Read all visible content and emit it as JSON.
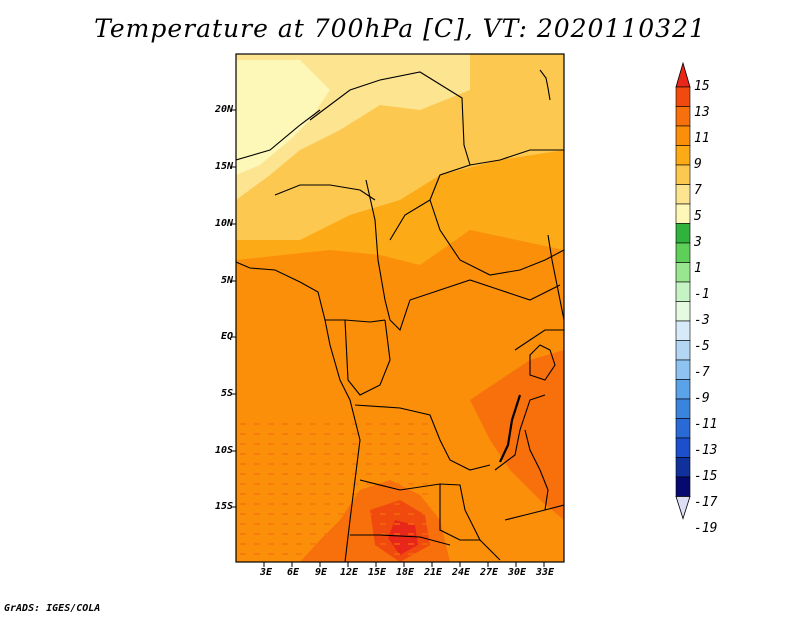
{
  "title": "Temperature at 700hPa [C], VT: 2020110321",
  "credit": "GrADS: IGES/COLA",
  "chart_data": {
    "type": "heatmap",
    "title": "Temperature at 700hPa [C], VT: 2020110321",
    "units": "C",
    "valid_time": "2020110321",
    "lon_range": [
      0,
      35
    ],
    "lat_range": [
      -20,
      25
    ],
    "y_ticks": [
      "20N",
      "15N",
      "10N",
      "5N",
      "EQ",
      "5S",
      "10S",
      "15S"
    ],
    "x_ticks": [
      "3E",
      "6E",
      "9E",
      "12E",
      "15E",
      "18E",
      "21E",
      "24E",
      "27E",
      "30E",
      "33E"
    ],
    "colorbar": {
      "labels": [
        "15",
        "13",
        "11",
        "9",
        "7",
        "5",
        "3",
        "1",
        "-1",
        "-3",
        "-5",
        "-7",
        "-9",
        "-11",
        "-13",
        "-15",
        "-17",
        "-19"
      ],
      "colors": [
        "#e8261a",
        "#f04a0e",
        "#f7700c",
        "#fb8f0a",
        "#fcaa16",
        "#fcc850",
        "#fce490",
        "#fdf7b8",
        "#2fb33c",
        "#5ed05a",
        "#98e68e",
        "#c6f3c3",
        "#e6fae2",
        "#d6eafa",
        "#b4d6f5",
        "#8ec2f0",
        "#5aa3e8",
        "#3a84dd",
        "#2a6ad6",
        "#1c4fcb",
        "#10309c",
        "#060a6e",
        "#dde0f5"
      ]
    },
    "field_summary": {
      "north_band": "3 to 7",
      "central_basin": "9 to 11",
      "east_rift_and_southern_angola": "11 to 13"
    }
  }
}
